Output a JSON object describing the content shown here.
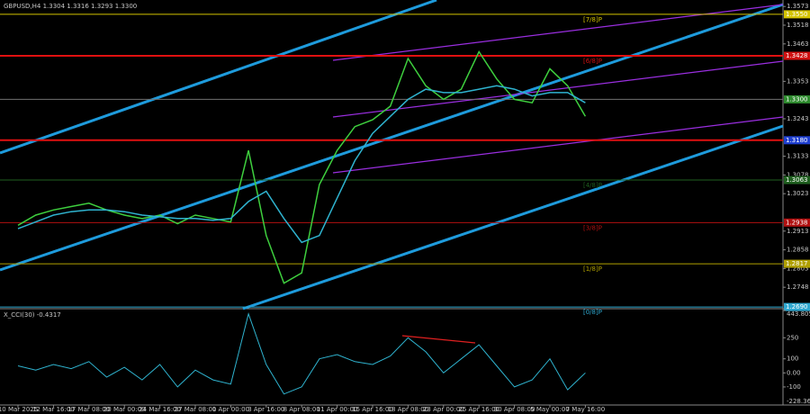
{
  "chart_data": [
    {
      "type": "line",
      "title": "GBPUSD,H4 1.3304 1.3316 1.3293 1.3300",
      "categories": [
        "10 Mar 2025",
        null,
        "12 Mar 16:00",
        null,
        "17 Mar 08:00",
        null,
        "20 Mar 00:00",
        null,
        "24 Mar 16:00",
        null,
        "27 Mar 08:00",
        null,
        "1 Apr 00:00",
        null,
        "3 Apr 16:00",
        null,
        "8 Apr 08:00",
        null,
        "11 Apr 00:00",
        null,
        "15 Apr 16:00",
        null,
        "18 Apr 08:00",
        null,
        "23 Apr 00:00",
        null,
        "25 Apr 16:00",
        null,
        "30 Apr 08:00",
        null,
        "5 May 00:00",
        null,
        "7 May 16:00"
      ],
      "series": [
        {
          "color": "#3ecf3e",
          "values": [
            1.293,
            1.296,
            1.2975,
            1.2985,
            1.2995,
            1.2975,
            1.296,
            1.295,
            1.296,
            1.2935,
            1.296,
            1.295,
            1.294,
            1.315,
            1.29,
            1.276,
            1.279,
            1.305,
            1.315,
            1.322,
            1.324,
            1.328,
            1.342,
            1.334,
            1.33,
            1.333,
            1.344,
            1.336,
            1.33,
            1.329,
            1.339,
            1.334,
            1.325
          ]
        },
        {
          "color": "#2fb3cf",
          "values": [
            1.292,
            1.294,
            1.296,
            1.297,
            1.2975,
            1.2975,
            1.297,
            1.296,
            1.2955,
            1.295,
            1.295,
            1.2945,
            1.295,
            1.3,
            1.303,
            1.295,
            1.288,
            1.29,
            1.301,
            1.312,
            1.32,
            1.325,
            1.33,
            1.333,
            1.332,
            1.332,
            1.333,
            1.334,
            1.333,
            1.331,
            1.332,
            1.332,
            1.329
          ]
        }
      ],
      "ylim": [
        1.2685,
        1.3592
      ],
      "yticks": [
        1.3573,
        1.3518,
        1.3463,
        1.3353,
        1.3243,
        1.3133,
        1.3078,
        1.3023,
        1.2913,
        1.2858,
        1.2803,
        1.2748
      ],
      "levels": [
        {
          "price": {
            "value": 1.355,
            "label": "1.3550"
          },
          "tag": "[7/8]P",
          "color": "#d4c400",
          "line_color": "#d4c400"
        },
        {
          "price": 1.3428,
          "tag": "[6/8]P",
          "color": "#d01010",
          "line_color": "#e01010"
        },
        {
          "price": {
            "value": 1.33,
            "label": "1.3300"
          },
          "color": "#2e8b2e",
          "line_color": "#707070"
        },
        {
          "price": {
            "value": 1.318,
            "label": "1.3180"
          },
          "color": "#1f3fd0",
          "line_color": "#e01010"
        },
        {
          "price": 1.3063,
          "tag": "[4/8]P",
          "color": "#1f5f1f",
          "line_color": "#1f5f1f"
        },
        {
          "price": 1.2938,
          "tag": "[3/8]P",
          "color": "#b01010",
          "line_color": "#b01010"
        },
        {
          "price": 1.2817,
          "tag": "[1/8]P",
          "color": "#b0a000",
          "line_color": "#b0a000"
        },
        {
          "price": {
            "value": 1.269,
            "label": "1.2690"
          },
          "tag": "[0/8]P",
          "color": "#2fa8d0",
          "line_color": "#2fa8d0"
        }
      ]
    },
    {
      "type": "line",
      "title": "X_CCI(30) -0.4317",
      "series": [
        {
          "color": "#2fb3cf",
          "values": [
            50,
            20,
            60,
            30,
            80,
            -30,
            40,
            -50,
            60,
            -100,
            20,
            -50,
            -80,
            420,
            60,
            -150,
            -100,
            100,
            130,
            80,
            60,
            120,
            250,
            150,
            0,
            100,
            200,
            50,
            -100,
            -50,
            100,
            -120,
            0
          ]
        }
      ],
      "ylim": [
        -228.364,
        443.8053
      ],
      "yticks": [
        443.8053,
        250,
        100,
        {
          "value": 0,
          "label": "0.00"
        },
        -100,
        -228.364
      ]
    }
  ]
}
